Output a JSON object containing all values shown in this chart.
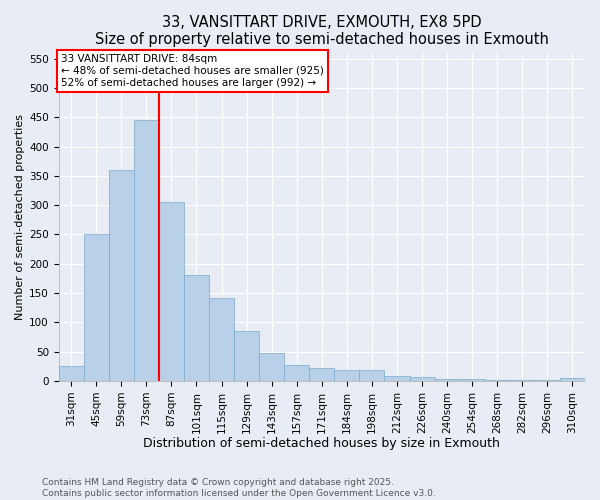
{
  "title": "33, VANSITTART DRIVE, EXMOUTH, EX8 5PD",
  "subtitle": "Size of property relative to semi-detached houses in Exmouth",
  "xlabel": "Distribution of semi-detached houses by size in Exmouth",
  "ylabel": "Number of semi-detached properties",
  "categories": [
    "31sqm",
    "45sqm",
    "59sqm",
    "73sqm",
    "87sqm",
    "101sqm",
    "115sqm",
    "129sqm",
    "143sqm",
    "157sqm",
    "171sqm",
    "184sqm",
    "198sqm",
    "212sqm",
    "226sqm",
    "240sqm",
    "254sqm",
    "268sqm",
    "282sqm",
    "296sqm",
    "310sqm"
  ],
  "values": [
    25,
    250,
    360,
    445,
    305,
    180,
    142,
    85,
    47,
    28,
    22,
    18,
    18,
    8,
    7,
    4,
    3,
    2,
    1,
    1,
    5
  ],
  "bar_color": "#b8d0e8",
  "bar_edge_color": "#7aaac8",
  "bar_linewidth": 0.5,
  "vline_color": "red",
  "vline_pos": 3.5,
  "vline_label": "33 VANSITTART DRIVE: 84sqm",
  "annotation_smaller": "← 48% of semi-detached houses are smaller (925)",
  "annotation_larger": "52% of semi-detached houses are larger (992) →",
  "ylim": [
    0,
    560
  ],
  "yticks": [
    0,
    50,
    100,
    150,
    200,
    250,
    300,
    350,
    400,
    450,
    500,
    550
  ],
  "bg_color": "#e8edf5",
  "footer": "Contains HM Land Registry data © Crown copyright and database right 2025.\nContains public sector information licensed under the Open Government Licence v3.0.",
  "title_fontsize": 10.5,
  "subtitle_fontsize": 9.5,
  "xlabel_fontsize": 9,
  "ylabel_fontsize": 8,
  "tick_fontsize": 7.5,
  "annot_fontsize": 7.5,
  "footer_fontsize": 6.5
}
